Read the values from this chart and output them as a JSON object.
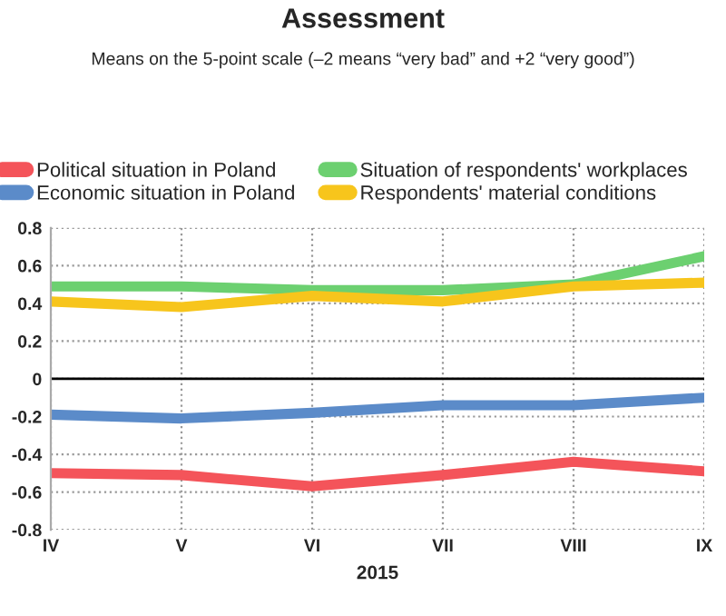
{
  "chart_data": {
    "type": "line",
    "title": "Assessment",
    "subtitle": "Means on the 5-point scale (–2 means “very bad” and +2 “very good”)",
    "xlabel": "2015",
    "categories": [
      "IV",
      "V",
      "VI",
      "VII",
      "VIII",
      "IX"
    ],
    "series": [
      {
        "name": "Political situation in Poland",
        "color": "#f4545a",
        "values": [
          -0.5,
          -0.51,
          -0.57,
          -0.51,
          -0.44,
          -0.49
        ]
      },
      {
        "name": "Economic situation in Poland",
        "color": "#5b8bc9",
        "values": [
          -0.19,
          -0.21,
          -0.18,
          -0.14,
          -0.14,
          -0.1
        ]
      },
      {
        "name": "Situation of respondents' workplaces",
        "color": "#6cd070",
        "values": [
          0.49,
          0.49,
          0.47,
          0.47,
          0.5,
          0.65
        ]
      },
      {
        "name": "Respondents' material conditions",
        "color": "#f7c51c",
        "values": [
          0.41,
          0.38,
          0.44,
          0.41,
          0.49,
          0.51
        ]
      }
    ],
    "ylim": [
      -0.8,
      0.8
    ],
    "yticks": [
      -0.8,
      -0.6,
      -0.4,
      -0.2,
      0,
      0.2,
      0.4,
      0.6,
      0.8
    ],
    "ref_lines": [
      {
        "axis": "y",
        "value": 0,
        "color": "#000000"
      }
    ],
    "grid": true,
    "legend": "top",
    "marker": "none",
    "line_style": "solid"
  }
}
